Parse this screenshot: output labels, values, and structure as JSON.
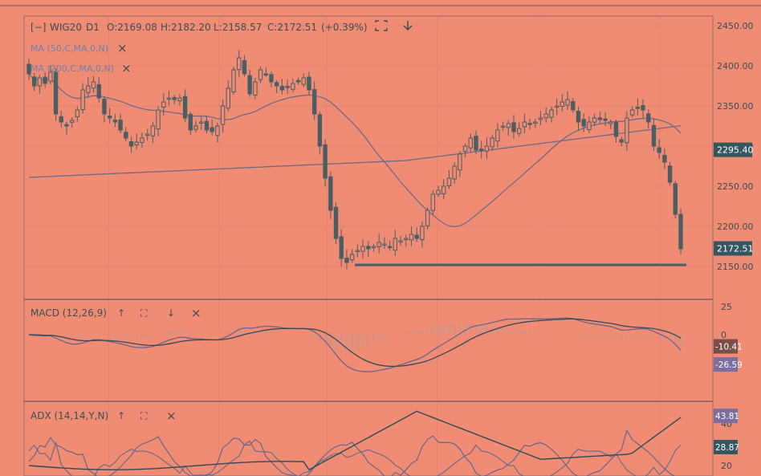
{
  "colors": {
    "background": "#f08b74",
    "grid": "#e48572",
    "frame": "#9a6a66",
    "candle": "#4a5e63",
    "ma_line": "#6e6a86",
    "macd_line": "#6a6488",
    "signal_line": "#2f4b57",
    "histogram": "#c8968c",
    "label_blue": "#6c7fae",
    "badge_teal": "#34565f",
    "badge_brown": "#7a4f4a",
    "badge_purple": "#7a6fa0",
    "text": "#3d4d52"
  },
  "header": {
    "collapse_icon": "[−]",
    "symbol": "WIG20",
    "interval": "D1",
    "open": "O:2169.08",
    "high": "H:2182.20",
    "low": "L:2158.57",
    "close": "C:2172.51",
    "change": "(+0.39%)",
    "fullscreen_icon": "expand-icon",
    "down_icon": "arrow-down-icon"
  },
  "indicators": {
    "ma50": "MA (50,C,MA,0,N)",
    "ma200": "MA (200,C,MA,0,N)",
    "close_icon": "×"
  },
  "macd_header": {
    "label": "MACD (12,26,9)",
    "up_icon": "↑",
    "expand_icon": "⛶",
    "down_icon": "↓",
    "close_icon": "×"
  },
  "adx_header": {
    "label": "ADX (14,14,Y,N)",
    "up_icon": "↑",
    "expand_icon": "⛶",
    "close_icon": "×"
  },
  "chart_data": [
    {
      "type": "candlestick",
      "name": "WIG20",
      "y_ticks": [
        2450,
        2400,
        2350,
        2300,
        2250,
        2200,
        2150
      ],
      "y_tick_labels": [
        "2450.00",
        "2400.00",
        "2350.00",
        "2300.00",
        "2250.00",
        "2200.00",
        "2150.00"
      ],
      "ylim": [
        2137,
        2462
      ],
      "price_badges": [
        {
          "value": 2295.4,
          "label": "2295.40"
        },
        {
          "value": 2172.51,
          "label": "2172.51"
        }
      ],
      "support_line": 2152,
      "close": [
        2390,
        2375,
        2385,
        2378,
        2392,
        2340,
        2330,
        2325,
        2332,
        2345,
        2370,
        2375,
        2380,
        2360,
        2340,
        2335,
        2330,
        2320,
        2310,
        2300,
        2305,
        2310,
        2315,
        2325,
        2345,
        2355,
        2360,
        2358,
        2360,
        2335,
        2320,
        2325,
        2330,
        2320,
        2318,
        2325,
        2350,
        2372,
        2395,
        2410,
        2390,
        2365,
        2380,
        2395,
        2390,
        2380,
        2375,
        2370,
        2373,
        2378,
        2380,
        2385,
        2370,
        2340,
        2300,
        2260,
        2220,
        2185,
        2160,
        2155,
        2165,
        2170,
        2175,
        2172,
        2175,
        2180,
        2178,
        2175,
        2185,
        2182,
        2185,
        2190,
        2185,
        2200,
        2220,
        2240,
        2245,
        2250,
        2260,
        2275,
        2290,
        2300,
        2310,
        2295,
        2295,
        2300,
        2310,
        2320,
        2325,
        2328,
        2318,
        2322,
        2330,
        2328,
        2330,
        2335,
        2340,
        2345,
        2350,
        2355,
        2358,
        2345,
        2330,
        2325,
        2330,
        2335,
        2333,
        2332,
        2330,
        2312,
        2305,
        2335,
        2345,
        2348,
        2345,
        2330,
        2300,
        2292,
        2280,
        2255,
        2215,
        2172
      ]
    },
    {
      "type": "line",
      "name": "MACD",
      "y_tick_labels": [
        "25",
        "0"
      ],
      "ylim": [
        -58,
        30
      ],
      "badges": [
        {
          "value": -10.41,
          "label": "-10.41"
        },
        {
          "value": -26.59,
          "label": "-26.59"
        }
      ]
    },
    {
      "type": "line",
      "name": "ADX",
      "y_tick_labels": [
        "40",
        "20"
      ],
      "ylim": [
        15,
        50
      ],
      "badges": [
        {
          "value": 43.81,
          "label": "43.81"
        },
        {
          "value": 28.87,
          "label": "28.87"
        }
      ]
    }
  ]
}
